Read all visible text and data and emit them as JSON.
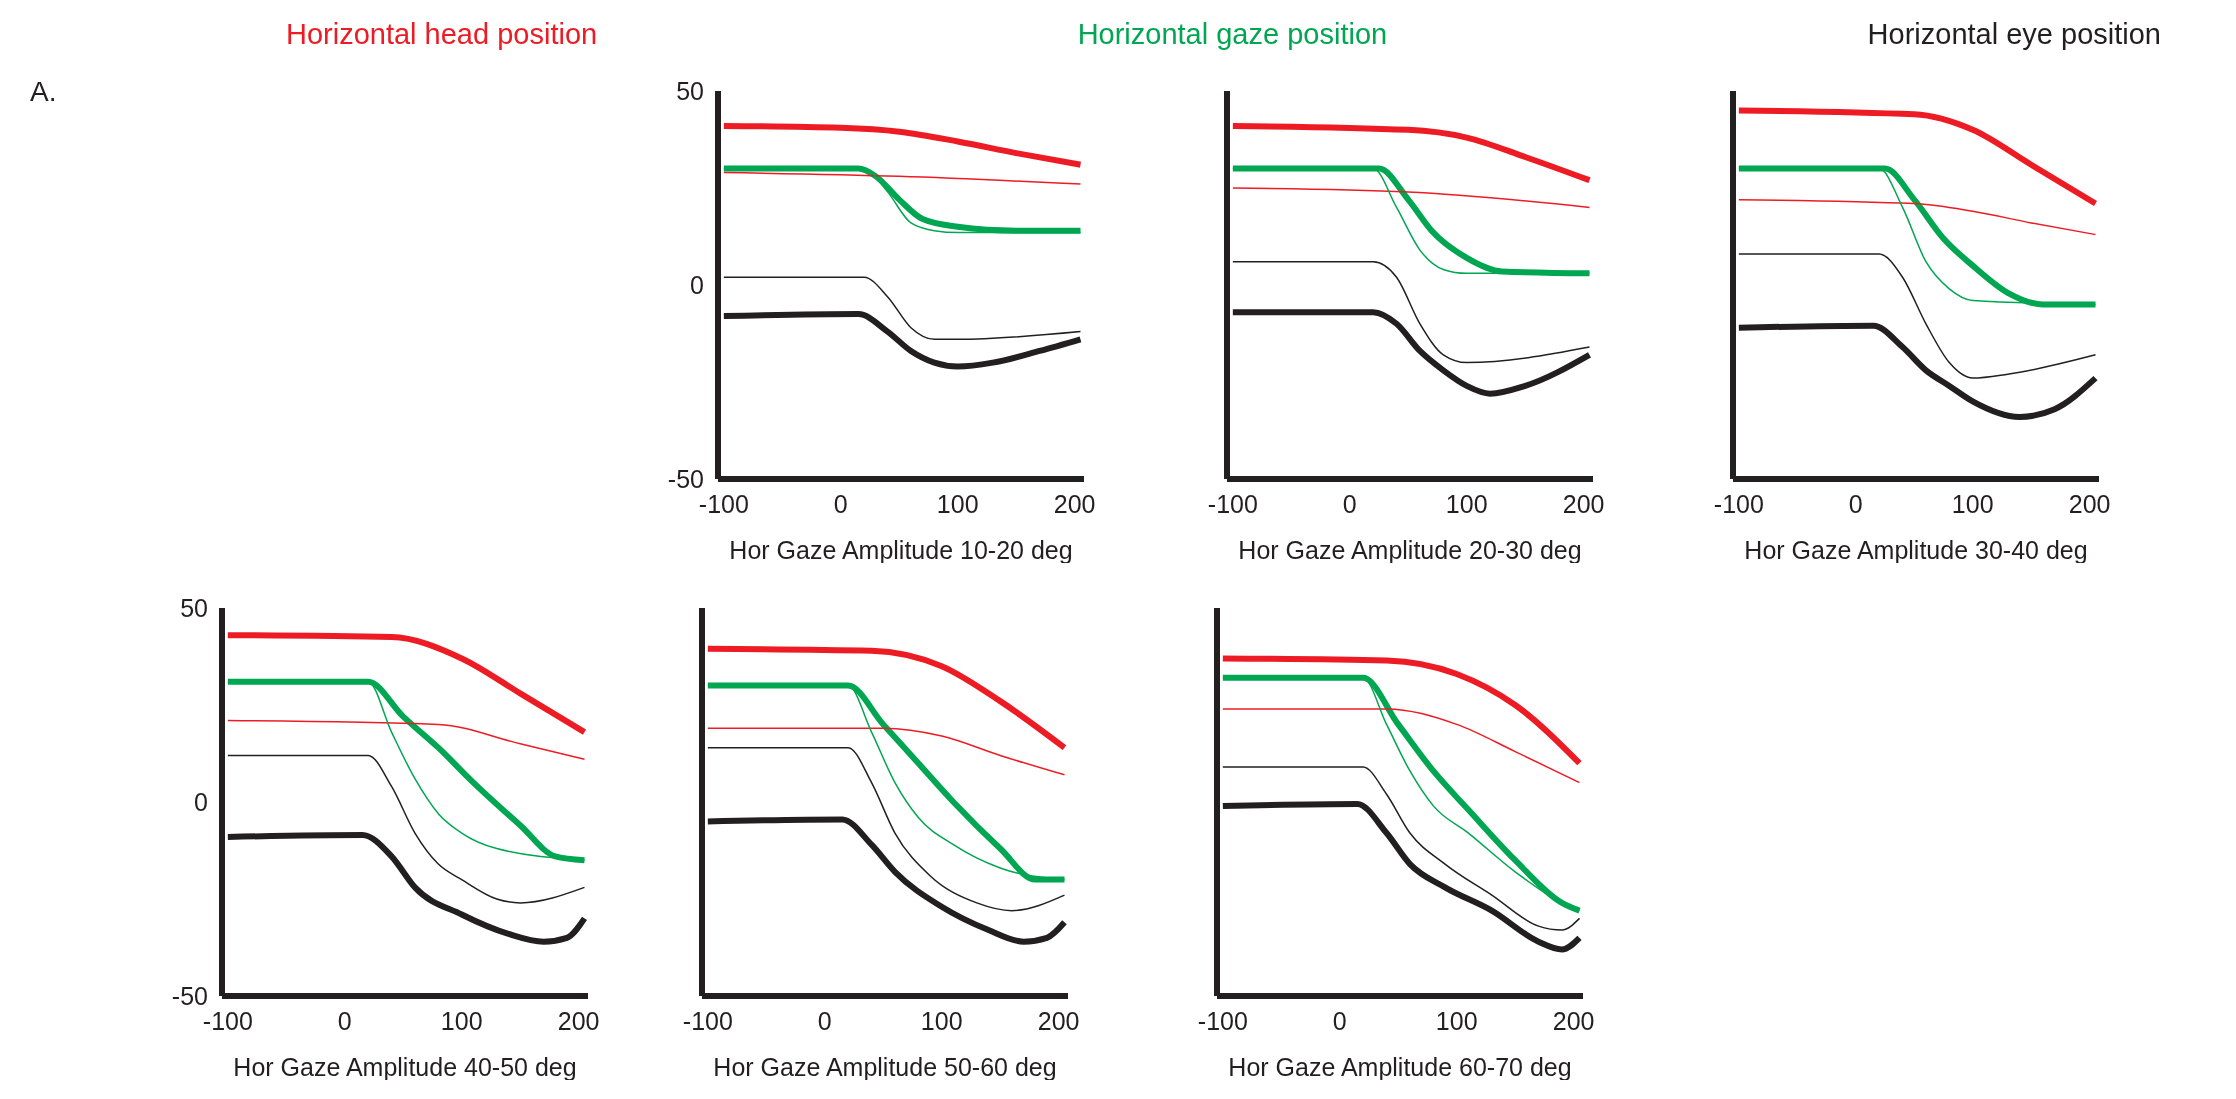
{
  "chart_data": [
    {
      "type": "line",
      "xlabel": "Hor Gaze Amplitude 10-20 deg",
      "xlim": [
        -105,
        208
      ],
      "xticks": [
        -100,
        0,
        100,
        200
      ],
      "ylim": [
        -50,
        50
      ],
      "yticks": [
        50,
        0,
        -50
      ],
      "legend": "top",
      "annotations": [
        "A."
      ],
      "series": [
        {
          "name": "Horizontal head position",
          "color": "#ed1c24",
          "x": [
            -100,
            0,
            50,
            100,
            150,
            205
          ],
          "values": [
            41,
            40.5,
            39.5,
            37,
            34,
            31
          ]
        },
        {
          "name": "Horizontal gaze position",
          "color": "#00a651",
          "x": [
            -100,
            15,
            30,
            50,
            70,
            100,
            150,
            205
          ],
          "values": [
            30,
            30,
            28,
            22,
            17,
            15,
            14,
            14
          ]
        },
        {
          "name": "Horizontal eye position",
          "color": "#231f20",
          "x": [
            -100,
            15,
            40,
            60,
            80,
            100,
            130,
            170,
            205
          ],
          "values": [
            -8,
            -7.5,
            -12,
            -17,
            -20,
            -21,
            -20,
            -17,
            -14
          ]
        },
        {
          "color": "#ed1c24",
          "x": [
            -100,
            50,
            205
          ],
          "values": [
            29,
            28,
            26
          ]
        },
        {
          "color": "#00a651",
          "x": [
            -100,
            20,
            40,
            60,
            80,
            100,
            205
          ],
          "values": [
            30,
            30,
            24,
            16,
            14,
            13.5,
            13.5
          ]
        },
        {
          "color": "#231f20",
          "x": [
            -100,
            20,
            40,
            60,
            80,
            100,
            205
          ],
          "values": [
            2,
            2,
            -3,
            -11,
            -14,
            -14,
            -12
          ]
        }
      ]
    },
    {
      "type": "line",
      "xlabel": "Hor Gaze Amplitude 20-30 deg",
      "xlim": [
        -105,
        208
      ],
      "xticks": [
        -100,
        0,
        100,
        200
      ],
      "ylim": [
        -50,
        50
      ],
      "yticks": [
        50,
        0,
        -50
      ],
      "tick_labels": "x",
      "series": [
        {
          "color": "#ed1c24",
          "x": [
            -100,
            50,
            100,
            150,
            205
          ],
          "values": [
            41,
            40,
            38,
            33,
            27
          ]
        },
        {
          "color": "#00a651",
          "x": [
            -100,
            25,
            50,
            70,
            100,
            130,
            205
          ],
          "values": [
            30,
            30,
            22,
            14,
            7,
            3.5,
            3
          ]
        },
        {
          "color": "#231f20",
          "x": [
            -100,
            20,
            40,
            60,
            80,
            100,
            120,
            150,
            205
          ],
          "values": [
            -7,
            -7,
            -10,
            -17,
            -22,
            -26,
            -28,
            -26,
            -18
          ]
        },
        {
          "color": "#ed1c24",
          "x": [
            -100,
            50,
            205
          ],
          "values": [
            25,
            24,
            20
          ]
        },
        {
          "color": "#00a651",
          "x": [
            -100,
            20,
            40,
            60,
            80,
            100,
            205
          ],
          "values": [
            30,
            30,
            20,
            9,
            4,
            3,
            3
          ]
        },
        {
          "color": "#231f20",
          "x": [
            -100,
            20,
            40,
            60,
            80,
            100,
            205
          ],
          "values": [
            6,
            6,
            2,
            -10,
            -18,
            -20,
            -16
          ]
        }
      ]
    },
    {
      "type": "line",
      "xlabel": "Hor Gaze Amplitude 30-40 deg",
      "xlim": [
        -105,
        208
      ],
      "xticks": [
        -100,
        0,
        100,
        200
      ],
      "ylim": [
        -50,
        50
      ],
      "yticks": [
        50,
        0,
        -50
      ],
      "tick_labels": "x",
      "series": [
        {
          "color": "#ed1c24",
          "x": [
            -100,
            50,
            100,
            150,
            205
          ],
          "values": [
            45,
            44,
            40,
            31,
            21
          ]
        },
        {
          "color": "#00a651",
          "x": [
            -100,
            25,
            50,
            75,
            100,
            130,
            160,
            205
          ],
          "values": [
            30,
            30,
            22,
            12,
            5,
            -2,
            -5,
            -5
          ]
        },
        {
          "color": "#231f20",
          "x": [
            -100,
            15,
            40,
            60,
            80,
            100,
            140,
            170,
            205
          ],
          "values": [
            -11,
            -10.5,
            -16,
            -22,
            -26,
            -30,
            -34,
            -32,
            -24
          ]
        },
        {
          "color": "#ed1c24",
          "x": [
            -100,
            50,
            100,
            150,
            205
          ],
          "values": [
            22,
            21,
            19,
            16,
            13
          ]
        },
        {
          "color": "#00a651",
          "x": [
            -100,
            20,
            40,
            60,
            80,
            100,
            205
          ],
          "values": [
            30,
            30,
            20,
            6,
            -1,
            -4,
            -5
          ]
        },
        {
          "color": "#231f20",
          "x": [
            -100,
            20,
            40,
            60,
            80,
            100,
            130,
            205
          ],
          "values": [
            8,
            8,
            2,
            -10,
            -20,
            -24,
            -23,
            -18
          ]
        }
      ]
    },
    {
      "type": "line",
      "xlabel": "Hor Gaze Amplitude 40-50 deg",
      "xlim": [
        -105,
        208
      ],
      "xticks": [
        -100,
        0,
        100,
        200
      ],
      "ylim": [
        -50,
        50
      ],
      "yticks": [
        50,
        0,
        -50
      ],
      "series": [
        {
          "color": "#ed1c24",
          "x": [
            -100,
            40,
            100,
            150,
            205
          ],
          "values": [
            43,
            42.5,
            37,
            28,
            18
          ]
        },
        {
          "color": "#00a651",
          "x": [
            -100,
            20,
            50,
            80,
            110,
            150,
            180,
            205
          ],
          "values": [
            31,
            31,
            22,
            14,
            5,
            -6,
            -14,
            -15
          ]
        },
        {
          "color": "#231f20",
          "x": [
            -100,
            15,
            40,
            60,
            100,
            140,
            170,
            190,
            205
          ],
          "values": [
            -9,
            -8.5,
            -14,
            -22,
            -29,
            -34,
            -36,
            -35,
            -30
          ]
        },
        {
          "color": "#ed1c24",
          "x": [
            -100,
            80,
            150,
            205
          ],
          "values": [
            21,
            20,
            15,
            11
          ]
        },
        {
          "color": "#00a651",
          "x": [
            -100,
            20,
            40,
            60,
            80,
            100,
            130,
            205
          ],
          "values": [
            31,
            31,
            18,
            6,
            -3,
            -8,
            -12,
            -15
          ]
        },
        {
          "color": "#231f20",
          "x": [
            -100,
            20,
            40,
            60,
            80,
            100,
            130,
            150,
            205
          ],
          "values": [
            12,
            12,
            4,
            -8,
            -16,
            -20,
            -25,
            -26,
            -22
          ]
        }
      ]
    },
    {
      "type": "line",
      "xlabel": "Hor Gaze Amplitude 50-60 deg",
      "xlim": [
        -105,
        208
      ],
      "xticks": [
        -100,
        0,
        100,
        200
      ],
      "ylim": [
        -50,
        50
      ],
      "yticks": [
        50,
        0,
        -50
      ],
      "tick_labels": "x",
      "series": [
        {
          "color": "#ed1c24",
          "x": [
            -100,
            40,
            100,
            150,
            205
          ],
          "values": [
            39.5,
            39,
            35,
            26,
            14
          ]
        },
        {
          "color": "#00a651",
          "x": [
            -100,
            20,
            50,
            80,
            110,
            150,
            180,
            205
          ],
          "values": [
            30,
            30,
            20,
            10,
            0,
            -12,
            -20,
            -20
          ]
        },
        {
          "color": "#231f20",
          "x": [
            -100,
            15,
            40,
            60,
            100,
            140,
            170,
            190,
            205
          ],
          "values": [
            -5,
            -4.5,
            -11,
            -18,
            -27,
            -33,
            -36,
            -35,
            -31
          ]
        },
        {
          "color": "#ed1c24",
          "x": [
            -100,
            50,
            100,
            150,
            205
          ],
          "values": [
            19,
            19,
            17,
            12,
            7
          ]
        },
        {
          "color": "#00a651",
          "x": [
            -100,
            20,
            40,
            60,
            80,
            110,
            150,
            205
          ],
          "values": [
            30,
            30,
            18,
            5,
            -4,
            -11,
            -17,
            -20
          ]
        },
        {
          "color": "#231f20",
          "x": [
            -100,
            20,
            40,
            60,
            90,
            130,
            160,
            205
          ],
          "values": [
            14,
            14,
            5,
            -8,
            -19,
            -26,
            -28,
            -24
          ]
        }
      ]
    },
    {
      "type": "line",
      "xlabel": "Hor Gaze Amplitude 60-70 deg",
      "xlim": [
        -105,
        208
      ],
      "xticks": [
        -100,
        0,
        100,
        200
      ],
      "ylim": [
        -50,
        50
      ],
      "yticks": [
        50,
        0,
        -50
      ],
      "tick_labels": "x",
      "series": [
        {
          "color": "#ed1c24",
          "x": [
            -100,
            40,
            100,
            150,
            205
          ],
          "values": [
            37,
            36.5,
            33,
            25,
            10
          ]
        },
        {
          "color": "#00a651",
          "x": [
            -100,
            20,
            50,
            80,
            110,
            150,
            190,
            205
          ],
          "values": [
            32,
            32,
            20,
            8,
            -2,
            -15,
            -26,
            -28
          ]
        },
        {
          "color": "#231f20",
          "x": [
            -100,
            15,
            40,
            60,
            90,
            130,
            170,
            190,
            205
          ],
          "values": [
            -1,
            -0.5,
            -8,
            -16,
            -22,
            -28,
            -36,
            -38,
            -35
          ]
        },
        {
          "color": "#ed1c24",
          "x": [
            -100,
            40,
            100,
            150,
            205
          ],
          "values": [
            24,
            24,
            20,
            13,
            5
          ]
        },
        {
          "color": "#00a651",
          "x": [
            -100,
            20,
            40,
            60,
            80,
            110,
            150,
            190,
            205
          ],
          "values": [
            32,
            32,
            20,
            8,
            -1,
            -8,
            -18,
            -26,
            -28
          ]
        },
        {
          "color": "#231f20",
          "x": [
            -100,
            20,
            40,
            60,
            90,
            130,
            170,
            190,
            205
          ],
          "values": [
            9,
            9,
            2,
            -8,
            -16,
            -24,
            -32,
            -33,
            -30
          ]
        }
      ]
    }
  ]
}
